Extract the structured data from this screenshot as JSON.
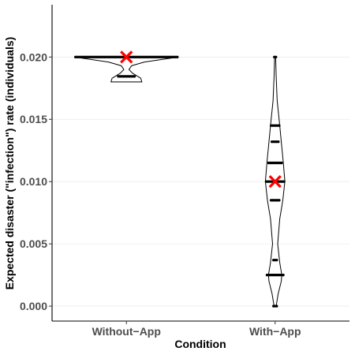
{
  "chart_data": {
    "type": "violin",
    "title": "",
    "xlabel": "Condition",
    "ylabel": "Expected disaster (\"infection\") rate (individuals)",
    "categories": [
      "Without−App",
      "With−App"
    ],
    "ylim": [
      -0.0012,
      0.0242
    ],
    "yticks": [
      0.0,
      0.005,
      0.01,
      0.015,
      0.02
    ],
    "ytick_labels": [
      "0.000",
      "0.005",
      "0.010",
      "0.015",
      "0.020"
    ],
    "grid": "horizontal-major",
    "legend": "none",
    "series": [
      {
        "category": "Without−App",
        "mean": 0.02,
        "dot_rows": [
          {
            "y": 0.02,
            "count": 64
          },
          {
            "y": 0.01845,
            "count": 11
          }
        ],
        "density": [
          {
            "y": 0.018,
            "w": 0.3
          },
          {
            "y": 0.0183,
            "w": 0.28
          },
          {
            "y": 0.01845,
            "w": 0.22
          },
          {
            "y": 0.0187,
            "w": 0.12
          },
          {
            "y": 0.019,
            "w": 0.05
          },
          {
            "y": 0.0193,
            "w": 0.1
          },
          {
            "y": 0.0196,
            "w": 0.35
          },
          {
            "y": 0.0199,
            "w": 0.85
          },
          {
            "y": 0.02,
            "w": 1.0
          }
        ]
      },
      {
        "category": "With−App",
        "mean": 0.01,
        "dot_rows": [
          {
            "y": 0.02,
            "count": 2
          },
          {
            "y": 0.0145,
            "count": 6
          },
          {
            "y": 0.0132,
            "count": 5
          },
          {
            "y": 0.0115,
            "count": 9
          },
          {
            "y": 0.01,
            "count": 12
          },
          {
            "y": 0.0085,
            "count": 6
          },
          {
            "y": 0.0037,
            "count": 3
          },
          {
            "y": 0.0025,
            "count": 11
          },
          {
            "y": 0.0,
            "count": 3
          }
        ],
        "density": [
          {
            "y": 0.0,
            "w": 0.02
          },
          {
            "y": 0.001,
            "w": 0.06
          },
          {
            "y": 0.002,
            "w": 0.12
          },
          {
            "y": 0.0025,
            "w": 0.13
          },
          {
            "y": 0.0035,
            "w": 0.09
          },
          {
            "y": 0.005,
            "w": 0.05
          },
          {
            "y": 0.007,
            "w": 0.09
          },
          {
            "y": 0.0085,
            "w": 0.15
          },
          {
            "y": 0.01,
            "w": 0.19
          },
          {
            "y": 0.0115,
            "w": 0.16
          },
          {
            "y": 0.0132,
            "w": 0.12
          },
          {
            "y": 0.0145,
            "w": 0.09
          },
          {
            "y": 0.0165,
            "w": 0.04
          },
          {
            "y": 0.0185,
            "w": 0.02
          },
          {
            "y": 0.02,
            "w": 0.01
          }
        ]
      }
    ]
  }
}
